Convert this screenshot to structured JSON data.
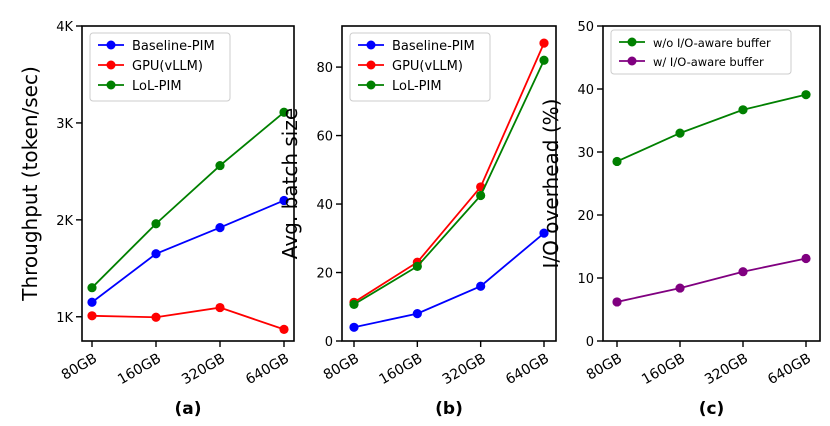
{
  "chart_data": [
    {
      "type": "line",
      "panel_label": "(a)",
      "title": "",
      "xlabel": "",
      "ylabel": "Throughput (token/sec)",
      "categories": [
        "80GB",
        "160GB",
        "320GB",
        "640GB"
      ],
      "ylim": [
        750,
        4000
      ],
      "yticks": [
        1000,
        2000,
        3000,
        4000
      ],
      "ytick_labels": [
        "1K",
        "2K",
        "3K",
        "4K"
      ],
      "series": [
        {
          "name": "Baseline-PIM",
          "color": "#0000ff",
          "values": [
            1150,
            1650,
            1920,
            2200
          ]
        },
        {
          "name": "GPU(vLLM)",
          "color": "#ff0000",
          "values": [
            1010,
            995,
            1095,
            870
          ]
        },
        {
          "name": "LoL-PIM",
          "color": "#008000",
          "values": [
            1300,
            1960,
            2560,
            3110
          ]
        }
      ],
      "legend": "top-left"
    },
    {
      "type": "line",
      "panel_label": "(b)",
      "title": "",
      "xlabel": "",
      "ylabel": "Avg. batch size",
      "categories": [
        "80GB",
        "160GB",
        "320GB",
        "640GB"
      ],
      "ylim": [
        0,
        92
      ],
      "yticks": [
        0,
        20,
        40,
        60,
        80
      ],
      "ytick_labels": [
        "0",
        "20",
        "40",
        "60",
        "80"
      ],
      "series": [
        {
          "name": "Baseline-PIM",
          "color": "#0000ff",
          "values": [
            4,
            8,
            16,
            31.5
          ]
        },
        {
          "name": "GPU(vLLM)",
          "color": "#ff0000",
          "values": [
            11.3,
            23,
            45,
            87
          ]
        },
        {
          "name": "LoL-PIM",
          "color": "#008000",
          "values": [
            10.7,
            21.8,
            42.5,
            82
          ]
        }
      ],
      "legend": "top-left"
    },
    {
      "type": "line",
      "panel_label": "(c)",
      "title": "",
      "xlabel": "",
      "ylabel": "I/O overhead (%)",
      "categories": [
        "80GB",
        "160GB",
        "320GB",
        "640GB"
      ],
      "ylim": [
        0,
        50
      ],
      "yticks": [
        0,
        10,
        20,
        30,
        40,
        50
      ],
      "ytick_labels": [
        "0",
        "10",
        "20",
        "30",
        "40",
        "50"
      ],
      "series": [
        {
          "name": "w/o I/O-aware buffer",
          "color": "#008000",
          "values": [
            28.5,
            33,
            36.7,
            39.1
          ]
        },
        {
          "name": "w/ I/O-aware buffer",
          "color": "#800080",
          "values": [
            6.2,
            8.4,
            11,
            13.1
          ]
        }
      ],
      "legend": "top-left"
    }
  ]
}
